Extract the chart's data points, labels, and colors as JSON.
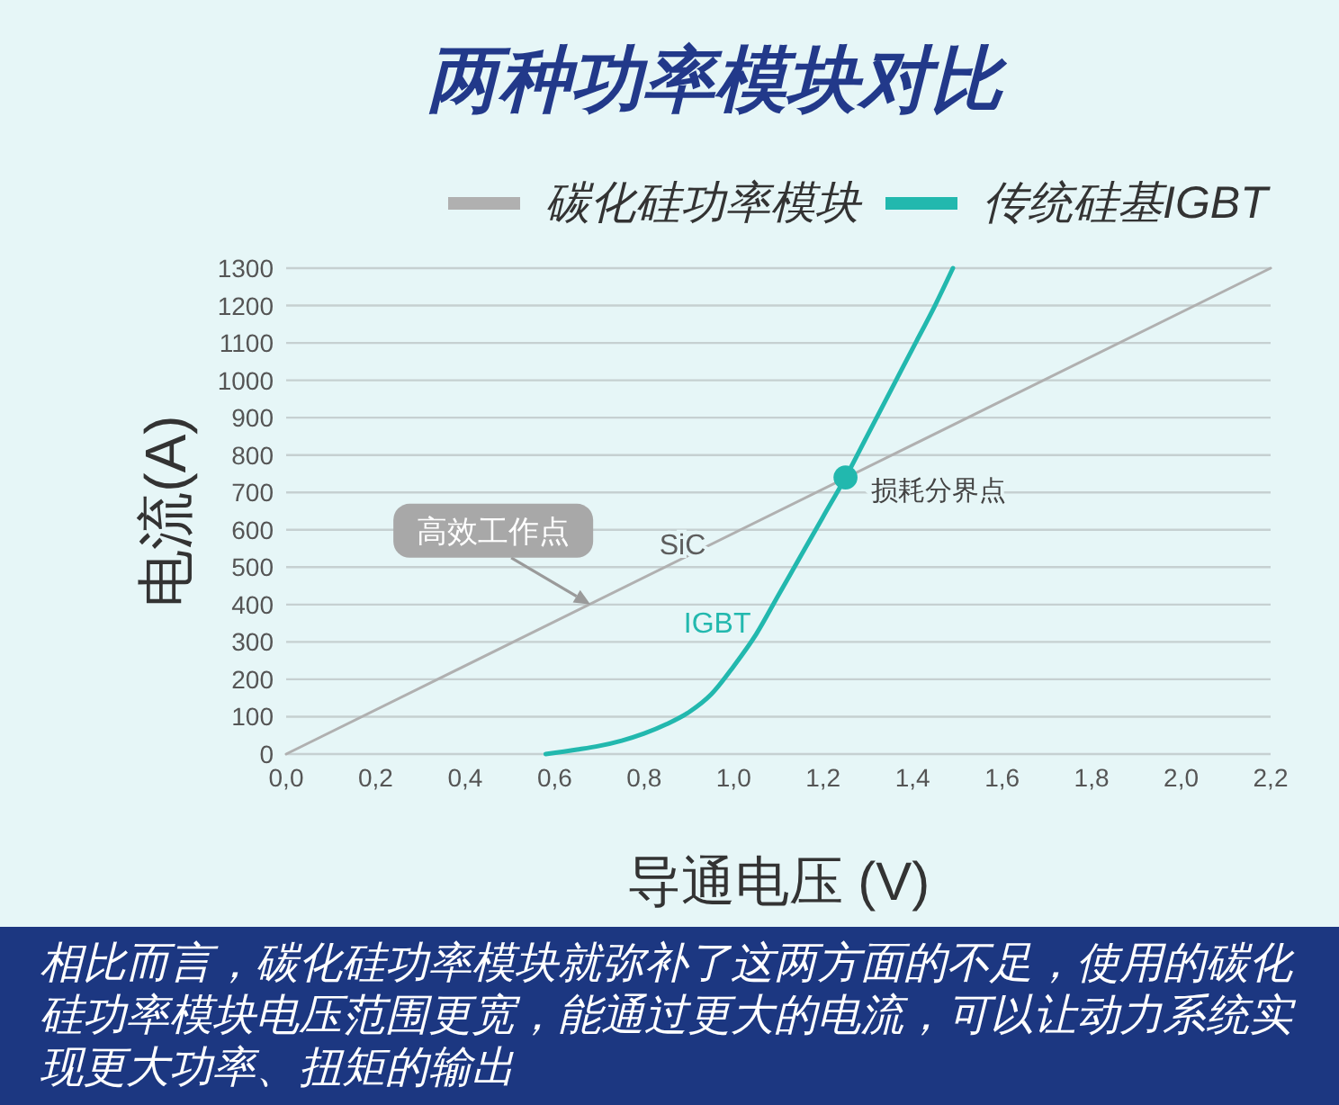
{
  "chart_data": {
    "type": "line",
    "title": "两种功率模块对比",
    "xlabel": "导通电压 (V)",
    "ylabel": "电流(A)",
    "series": [
      {
        "name": "碳化硅功率模块",
        "color": "#b0b0b0",
        "x": [
          0,
          2.2
        ],
        "values": [
          0,
          1300
        ]
      },
      {
        "name": "传统硅基IGBT",
        "color": "#22b8ae",
        "x": [
          0.58,
          0.65,
          0.7,
          0.75,
          0.8,
          0.85,
          0.9,
          0.95,
          1.0,
          1.05,
          1.1,
          1.15,
          1.2,
          1.25,
          1.3,
          1.35,
          1.4,
          1.45,
          1.49
        ],
        "values": [
          0,
          12,
          22,
          36,
          55,
          80,
          112,
          160,
          235,
          320,
          425,
          530,
          635,
          740,
          855,
          970,
          1085,
          1200,
          1300
        ]
      },
      {
        "type": "scatter",
        "color": "#22b8ae",
        "marker": "circle",
        "x": [
          1.25
        ],
        "values": [
          740
        ]
      }
    ],
    "xlim": [
      0,
      2.2
    ],
    "ylim": [
      0,
      1300
    ],
    "xticks": [
      {
        "value": 0,
        "label": "0,0"
      },
      {
        "value": 0.2,
        "label": "0,2"
      },
      {
        "value": 0.4,
        "label": "0,4"
      },
      {
        "value": 0.6,
        "label": "0,6"
      },
      {
        "value": 0.8,
        "label": "0,8"
      },
      {
        "value": 1,
        "label": "1,0"
      },
      {
        "value": 1.2,
        "label": "1,2"
      },
      {
        "value": 1.4,
        "label": "1,4"
      },
      {
        "value": 1.6,
        "label": "1,6"
      },
      {
        "value": 1.8,
        "label": "1,8"
      },
      {
        "value": 2,
        "label": "2,0"
      },
      {
        "value": 2.2,
        "label": "2,2"
      }
    ],
    "yticks": [
      0,
      100,
      200,
      300,
      400,
      500,
      600,
      700,
      800,
      900,
      1000,
      1100,
      1200,
      1300
    ],
    "grid": "y",
    "legend": "top right",
    "annotations": [
      {
        "text": "高效工作点",
        "x": 0.68,
        "y": 400
      },
      {
        "text": "SiC",
        "x": 0.91,
        "y": 540
      },
      {
        "text": "IGBT",
        "x": 1.06,
        "y": 350
      },
      {
        "text": "损耗分界点",
        "x": 1.25,
        "y": 740
      },
      "相比而言，碳化硅功率模块就弥补了这两方面的不足，使用的碳化硅功率模块电压范围更宽，能通过更大的电流，可以让动力系统实现更大功率、扭矩的输出"
    ]
  }
}
